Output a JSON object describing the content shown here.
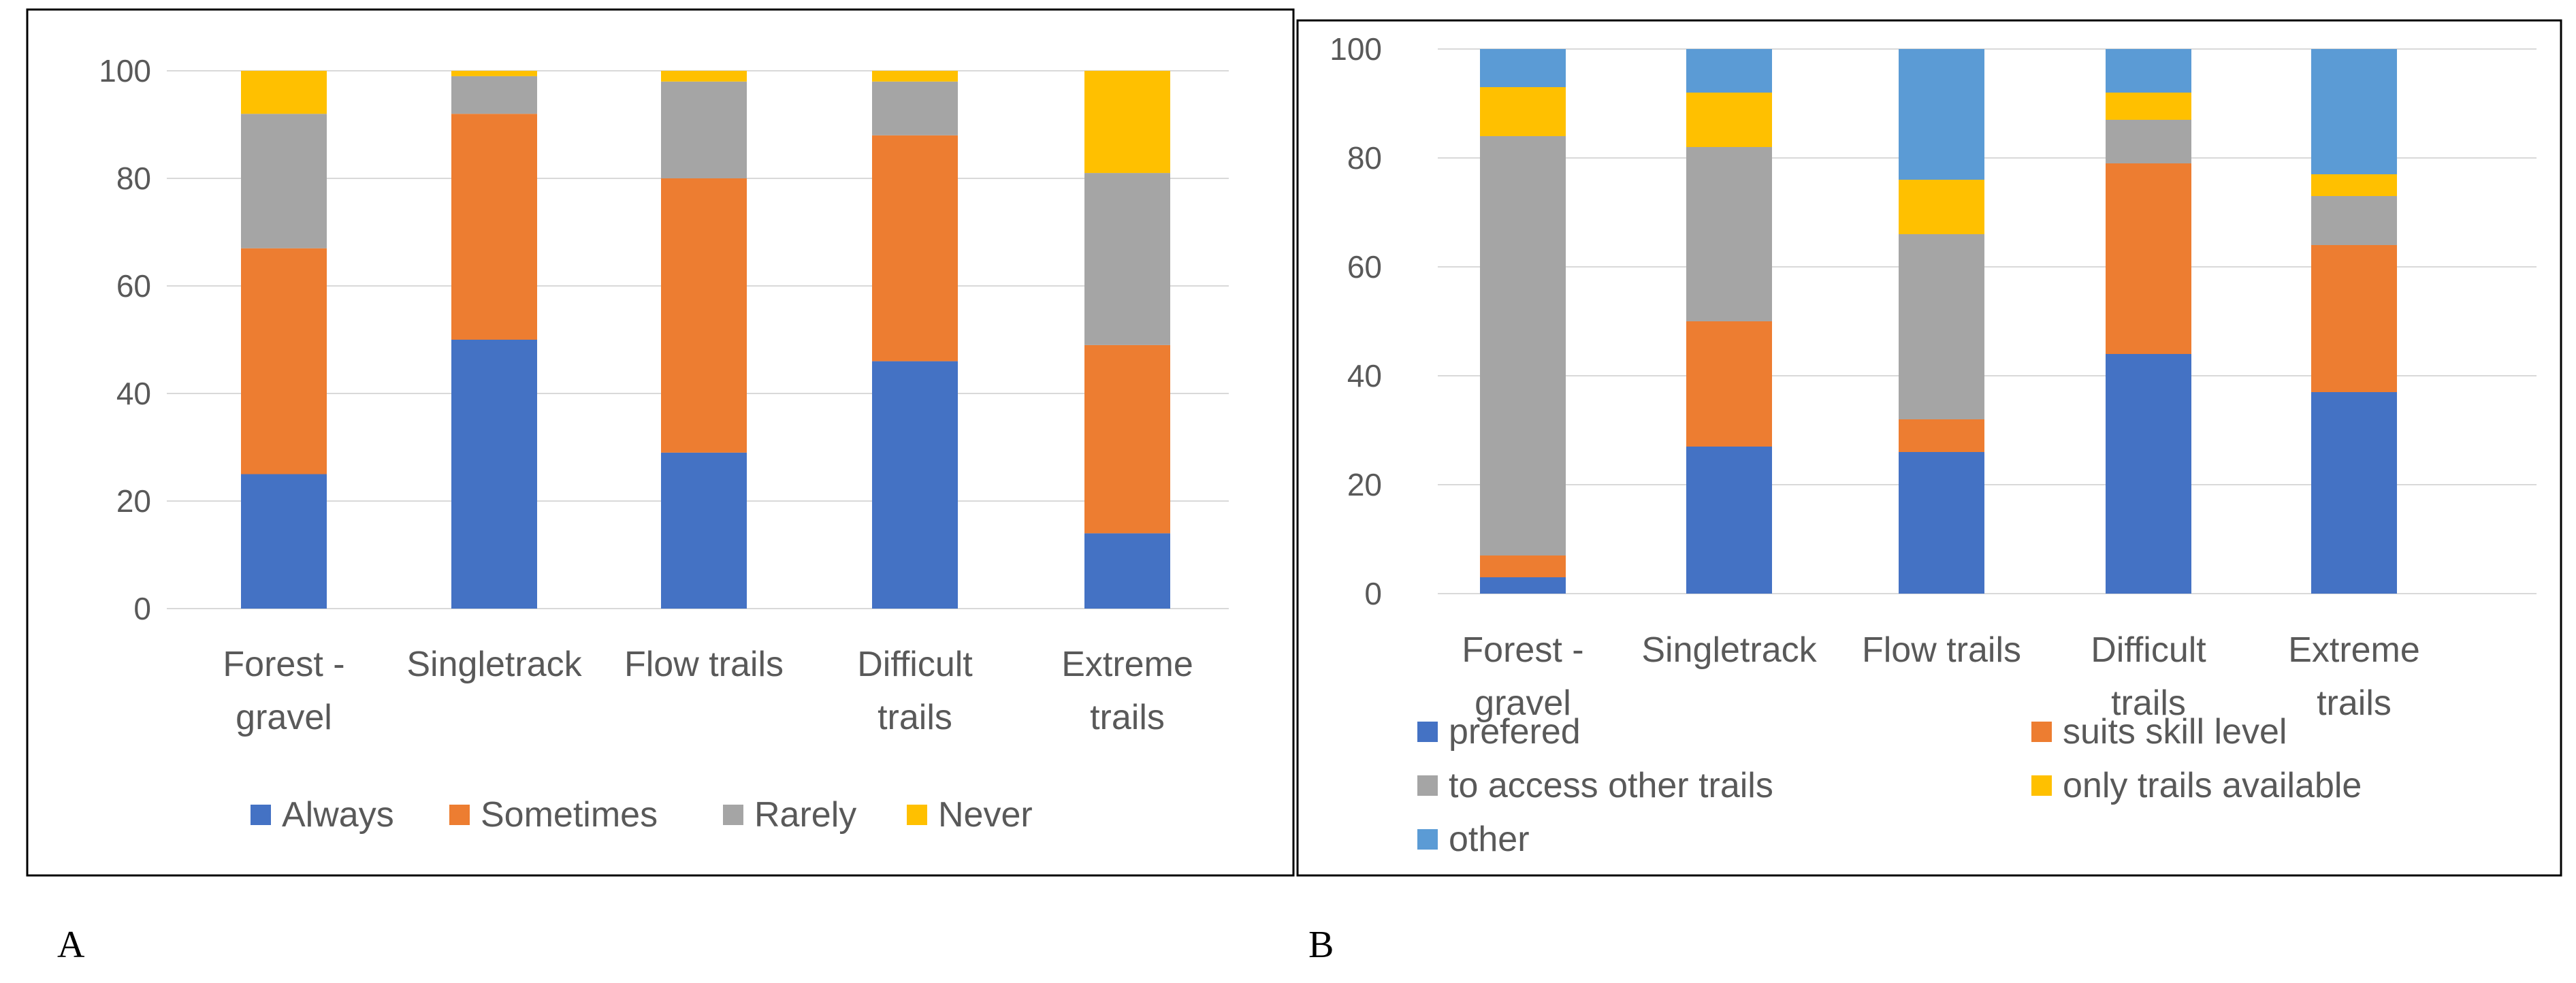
{
  "panels": [
    {
      "label": "A"
    },
    {
      "label": "B"
    }
  ],
  "chart_data": [
    {
      "type": "bar",
      "stacked": true,
      "title": "",
      "xlabel": "",
      "ylabel": "",
      "ylim": [
        0,
        100
      ],
      "yticks": [
        0,
        20,
        40,
        60,
        80,
        100
      ],
      "grid": true,
      "legend_position": "bottom",
      "categories": [
        [
          "Forest -",
          "gravel"
        ],
        [
          "Singletrack"
        ],
        [
          "Flow trails"
        ],
        [
          "Difficult",
          "trails"
        ],
        [
          "Extreme",
          "trails"
        ]
      ],
      "series": [
        {
          "name": "Always",
          "color": "#4472C4",
          "values": [
            25,
            50,
            29,
            46,
            14
          ]
        },
        {
          "name": "Sometimes",
          "color": "#ED7D31",
          "values": [
            42,
            42,
            51,
            42,
            35
          ]
        },
        {
          "name": "Rarely",
          "color": "#A5A5A5",
          "values": [
            25,
            7,
            18,
            10,
            32
          ]
        },
        {
          "name": "Never",
          "color": "#FFC000",
          "values": [
            8,
            1,
            2,
            2,
            19
          ]
        }
      ]
    },
    {
      "type": "bar",
      "stacked": true,
      "title": "",
      "xlabel": "",
      "ylabel": "",
      "ylim": [
        0,
        100
      ],
      "yticks": [
        0,
        20,
        40,
        60,
        80,
        100
      ],
      "grid": true,
      "legend_position": "bottom",
      "categories": [
        [
          "Forest -",
          "gravel"
        ],
        [
          "Singletrack"
        ],
        [
          "Flow trails"
        ],
        [
          "Difficult",
          "trails"
        ],
        [
          "Extreme",
          "trails"
        ]
      ],
      "series": [
        {
          "name": "prefered",
          "color": "#4472C4",
          "values": [
            3,
            27,
            26,
            44,
            37
          ]
        },
        {
          "name": "suits skill level",
          "color": "#ED7D31",
          "values": [
            4,
            23,
            6,
            35,
            27
          ]
        },
        {
          "name": "to access other trails",
          "color": "#A5A5A5",
          "values": [
            77,
            32,
            34,
            8,
            9
          ]
        },
        {
          "name": "only trails available",
          "color": "#FFC000",
          "values": [
            9,
            10,
            10,
            5,
            4
          ]
        },
        {
          "name": "other",
          "color": "#5B9BD5",
          "values": [
            7,
            8,
            24,
            8,
            23
          ]
        }
      ]
    }
  ]
}
